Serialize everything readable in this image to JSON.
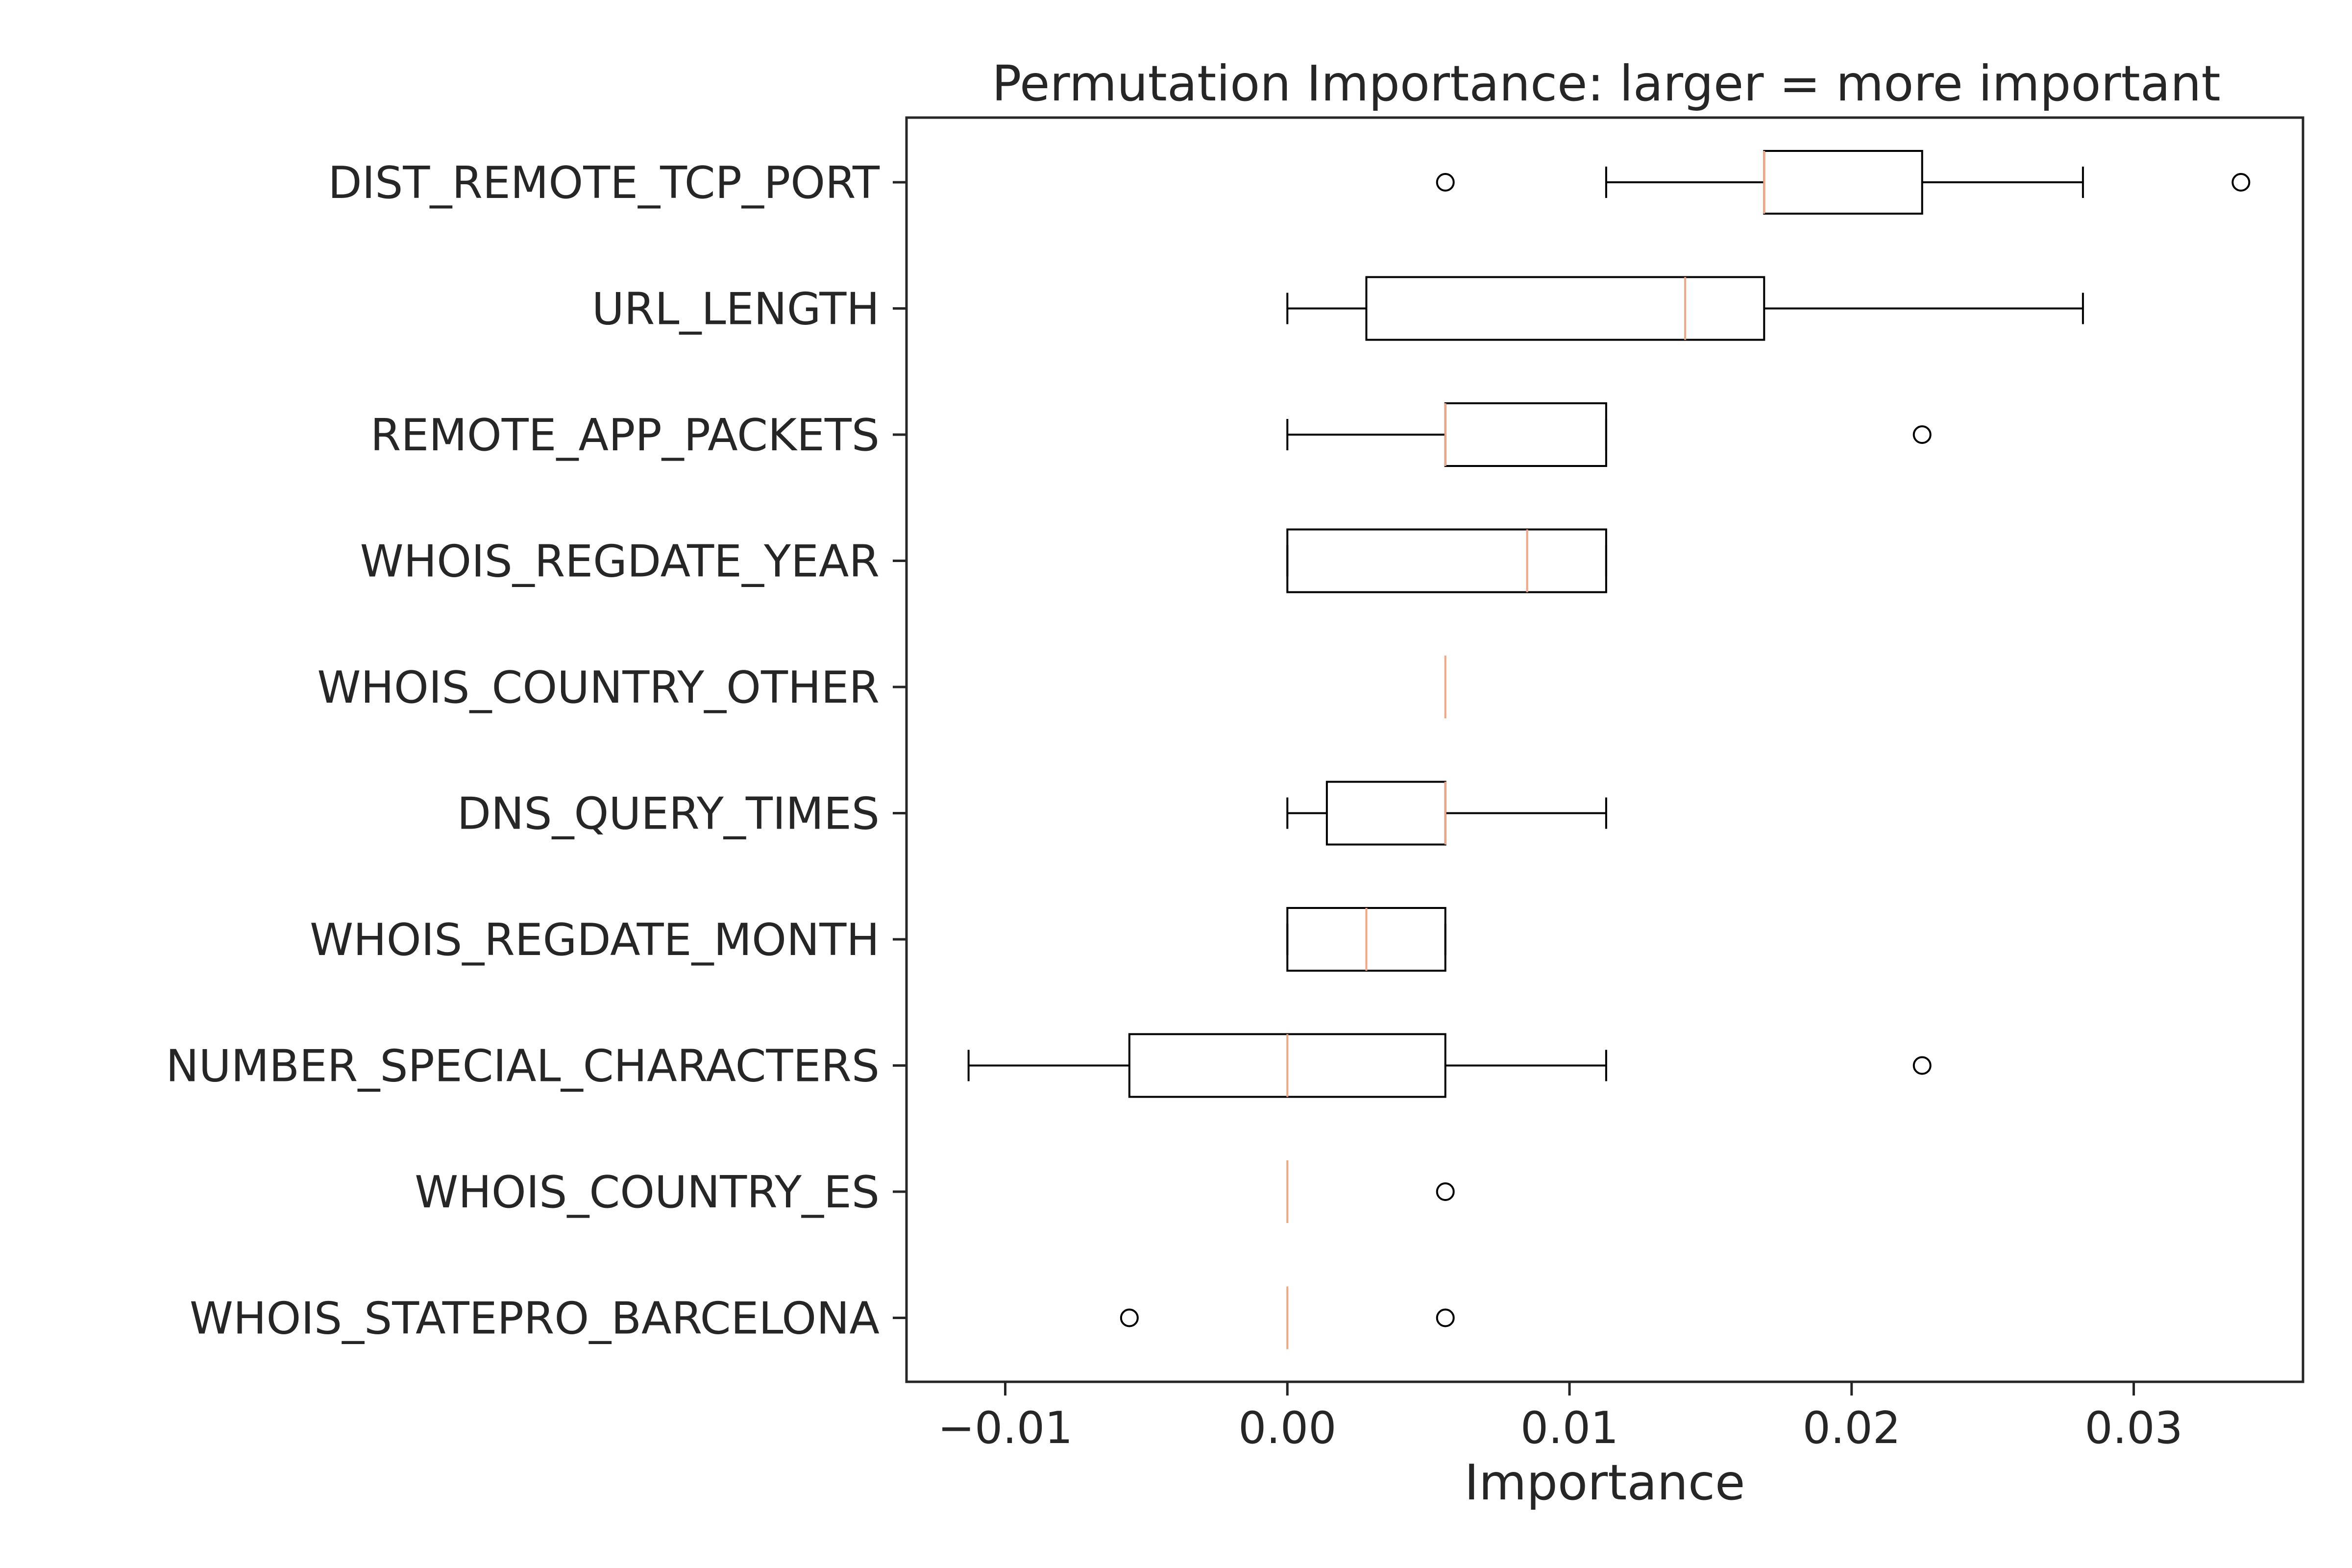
{
  "chart_data": {
    "type": "boxplot",
    "orientation": "horizontal",
    "title": "Permutation Importance: larger = more important",
    "xlabel": "Importance",
    "ylabel": "",
    "xlim": [
      -0.0135,
      0.036
    ],
    "xticks": [
      -0.01,
      0.0,
      0.01,
      0.02,
      0.03
    ],
    "xtick_labels": [
      "−0.01",
      "0.00",
      "0.01",
      "0.02",
      "0.03"
    ],
    "grid": false,
    "colors": {
      "box": "#000000",
      "median": "#f4a582",
      "text": "#262626"
    },
    "features": [
      {
        "name": "DIST_REMOTE_TCP_PORT",
        "whisker_low": 0.0113,
        "q1": 0.0169,
        "median": 0.0169,
        "q3": 0.0225,
        "whisker_high": 0.0282,
        "outliers": [
          0.0056,
          0.0338
        ]
      },
      {
        "name": "URL_LENGTH",
        "whisker_low": 0.0,
        "q1": 0.0028,
        "median": 0.0141,
        "q3": 0.0169,
        "whisker_high": 0.0282,
        "outliers": []
      },
      {
        "name": "REMOTE_APP_PACKETS",
        "whisker_low": 0.0,
        "q1": 0.0056,
        "median": 0.0056,
        "q3": 0.0113,
        "whisker_high": 0.0113,
        "outliers": [
          0.0225
        ]
      },
      {
        "name": "WHOIS_REGDATE_YEAR",
        "whisker_low": 0.0,
        "q1": 0.0,
        "median": 0.0085,
        "q3": 0.0113,
        "whisker_high": 0.0113,
        "outliers": []
      },
      {
        "name": "WHOIS_COUNTRY_OTHER",
        "whisker_low": 0.0056,
        "q1": 0.0056,
        "median": 0.0056,
        "q3": 0.0056,
        "whisker_high": 0.0056,
        "outliers": []
      },
      {
        "name": "DNS_QUERY_TIMES",
        "whisker_low": 0.0,
        "q1": 0.0014,
        "median": 0.0056,
        "q3": 0.0056,
        "whisker_high": 0.0113,
        "outliers": []
      },
      {
        "name": "WHOIS_REGDATE_MONTH",
        "whisker_low": 0.0,
        "q1": 0.0,
        "median": 0.0028,
        "q3": 0.0056,
        "whisker_high": 0.0056,
        "outliers": []
      },
      {
        "name": "NUMBER_SPECIAL_CHARACTERS",
        "whisker_low": -0.0113,
        "q1": -0.0056,
        "median": 0.0,
        "q3": 0.0056,
        "whisker_high": 0.0113,
        "outliers": [
          0.0225
        ]
      },
      {
        "name": "WHOIS_COUNTRY_ES",
        "whisker_low": 0.0,
        "q1": 0.0,
        "median": 0.0,
        "q3": 0.0,
        "whisker_high": 0.0,
        "outliers": [
          0.0056
        ]
      },
      {
        "name": "WHOIS_STATEPRO_BARCELONA",
        "whisker_low": 0.0,
        "q1": 0.0,
        "median": 0.0,
        "q3": 0.0,
        "whisker_high": 0.0,
        "outliers": [
          -0.0056,
          0.0056
        ]
      }
    ]
  }
}
